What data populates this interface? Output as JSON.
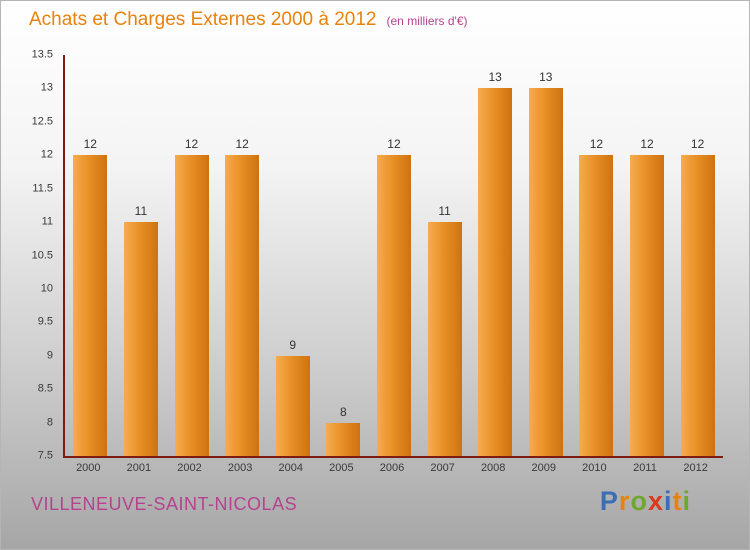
{
  "header": {
    "title": "Achats et Charges Externes 2000 à 2012",
    "subtitle": "(en milliers d'€)"
  },
  "chart_data": {
    "type": "bar",
    "title": "Achats et Charges Externes 2000 à 2012",
    "subtitle": "(en milliers d'€)",
    "categories": [
      "2000",
      "2001",
      "2002",
      "2003",
      "2004",
      "2005",
      "2006",
      "2007",
      "2008",
      "2009",
      "2010",
      "2011",
      "2012"
    ],
    "values": [
      12,
      11,
      12,
      12,
      9,
      8,
      12,
      11,
      13,
      13,
      12,
      12,
      12
    ],
    "xlabel": "",
    "ylabel": "",
    "ylim": [
      7.5,
      13.5
    ],
    "ytick_step": 0.5,
    "yticks": [
      7.5,
      8,
      8.5,
      9,
      9.5,
      10,
      10.5,
      11,
      11.5,
      12,
      12.5,
      13,
      13.5
    ],
    "grid": false,
    "legend": false,
    "bar_color_light": "#F6AC4F",
    "bar_color_dark": "#CE7210"
  },
  "footer": {
    "location": "VILLENEUVE-SAINT-NICOLAS",
    "logo_letters": [
      {
        "char": "P",
        "color": "#3A6FB5"
      },
      {
        "char": "r",
        "color": "#E8820C"
      },
      {
        "char": "o",
        "color": "#6FA82F"
      },
      {
        "char": "x",
        "color": "#D93A1E"
      },
      {
        "char": "i",
        "color": "#3A6FB5"
      },
      {
        "char": "t",
        "color": "#E8820C"
      },
      {
        "char": "i",
        "color": "#6FA82F"
      }
    ]
  },
  "colors": {
    "title": "#E8820C",
    "subtitle": "#B5438F",
    "location": "#B5438F",
    "axis": "#7E1B10",
    "tick_label": "#3a3a3a",
    "value_label": "#333333"
  }
}
